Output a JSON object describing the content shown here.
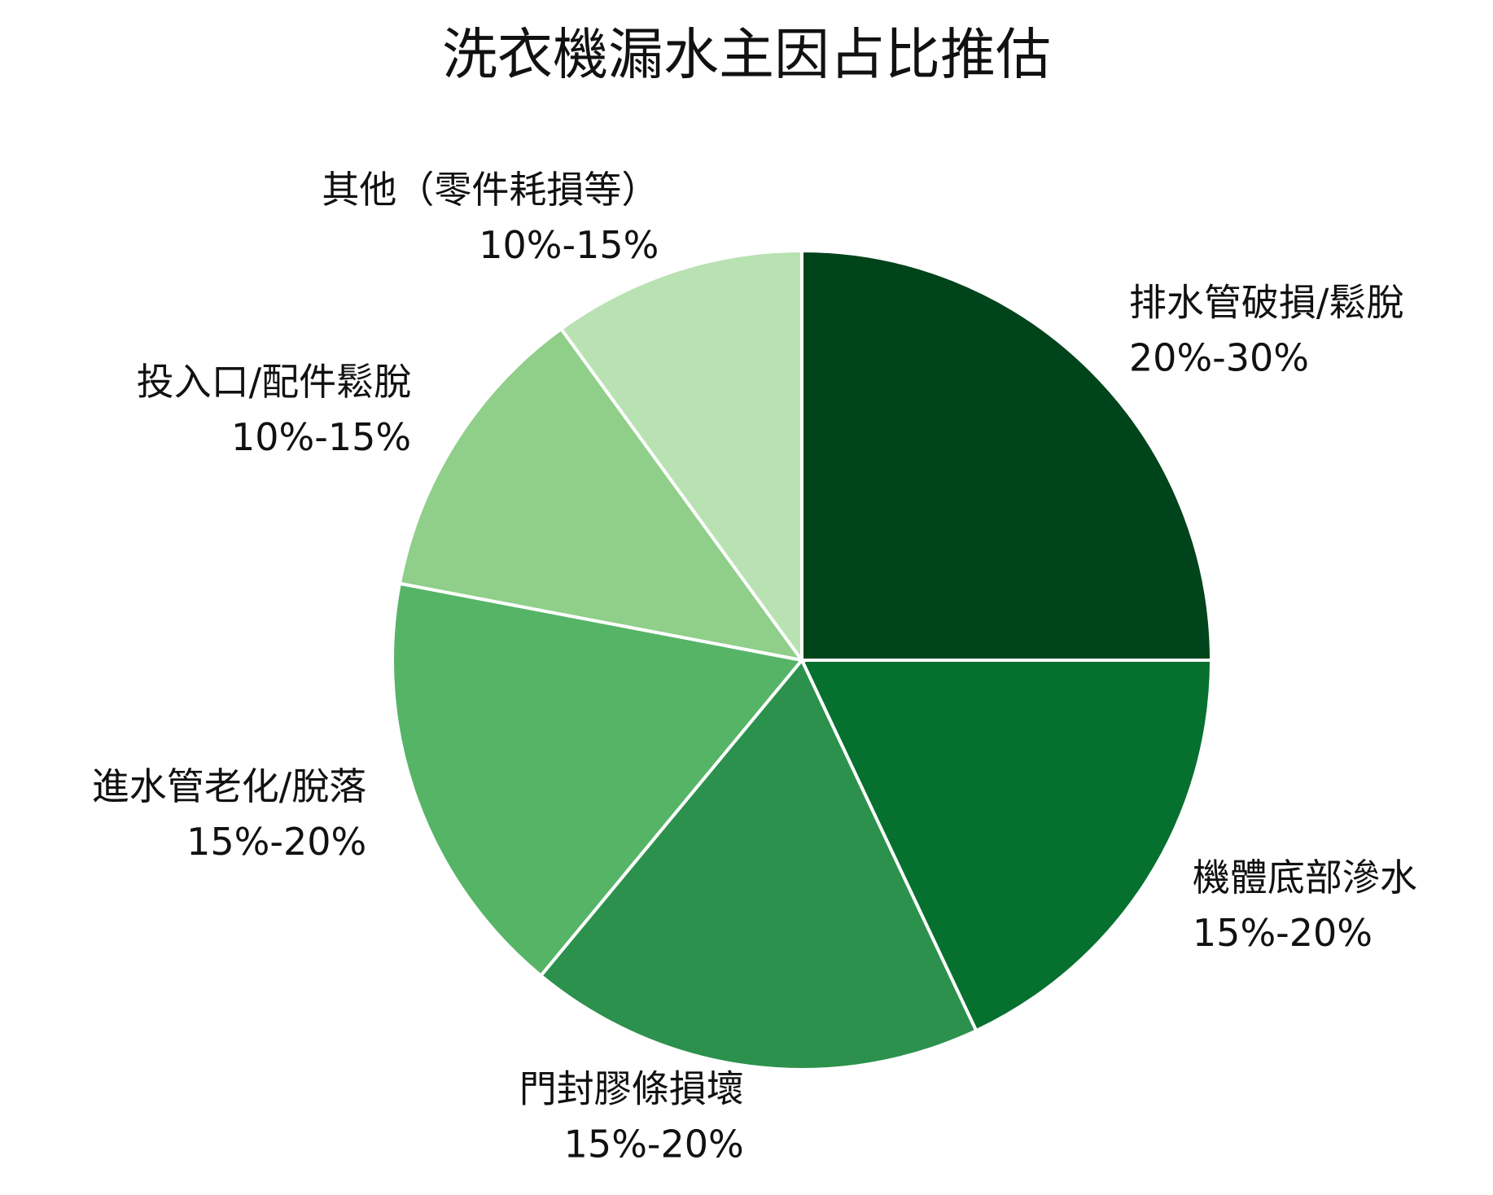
{
  "chart_data": {
    "type": "pie",
    "title": "洗衣機漏水主因占比推估",
    "categories": [
      "排水管破損/鬆脫",
      "機體底部滲水",
      "門封膠條損壞",
      "進水管老化/脫落",
      "投入口/配件鬆脫",
      "其他（零件耗損等）"
    ],
    "values": [
      25,
      18,
      18,
      17,
      12,
      10
    ],
    "value_labels": [
      "20%-30%",
      "15%-20%",
      "15%-20%",
      "15%-20%",
      "10%-15%",
      "10%-15%"
    ],
    "colors": [
      "#00441b",
      "#06702f",
      "#2c914c",
      "#56b467",
      "#8fcf89",
      "#b9e2b2"
    ]
  }
}
